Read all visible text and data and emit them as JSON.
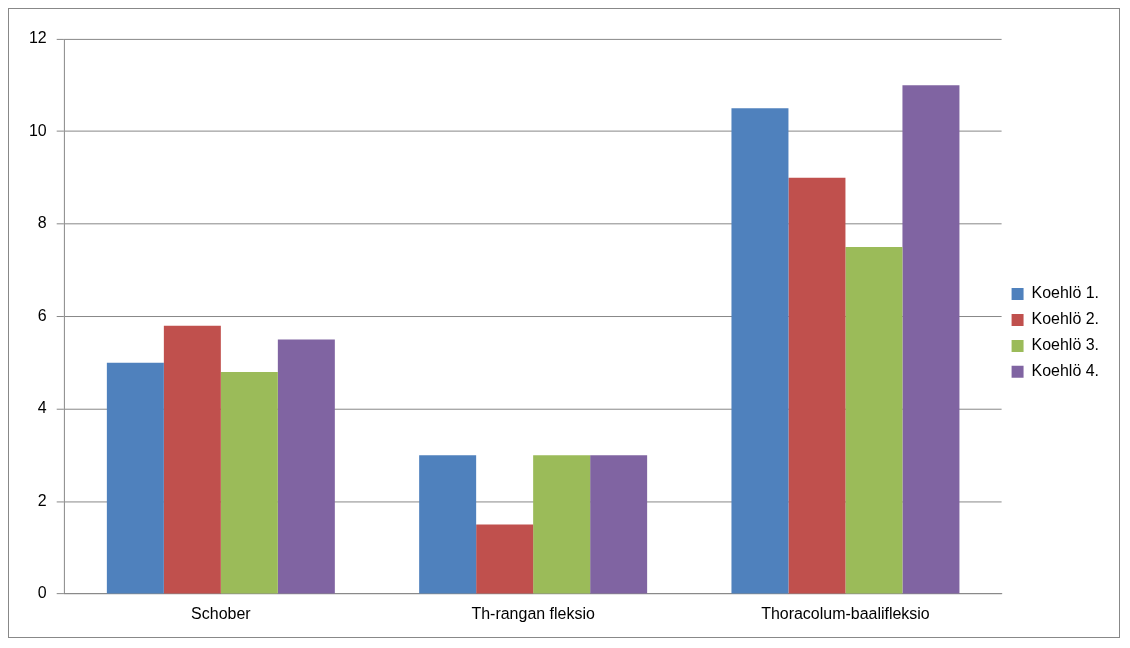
{
  "chart_data": {
    "type": "bar",
    "categories": [
      "Schober",
      "Th-rangan fleksio",
      "Thoracolum-baalifleksio"
    ],
    "series": [
      {
        "name": "Koehlö 1.",
        "color": "#4f81bd",
        "values": [
          5,
          3,
          10.5
        ]
      },
      {
        "name": "Koehlö 2.",
        "color": "#c0504d",
        "values": [
          5.8,
          1.5,
          9
        ]
      },
      {
        "name": "Koehlö 3.",
        "color": "#9bbb59",
        "values": [
          4.8,
          3,
          7.5
        ]
      },
      {
        "name": "Koehlö 4.",
        "color": "#8064a2",
        "values": [
          5.5,
          3,
          11
        ]
      }
    ],
    "ylim": [
      0,
      12
    ],
    "yticks": [
      0,
      2,
      4,
      6,
      8,
      10,
      12
    ],
    "grid": "y",
    "legend": "right"
  }
}
